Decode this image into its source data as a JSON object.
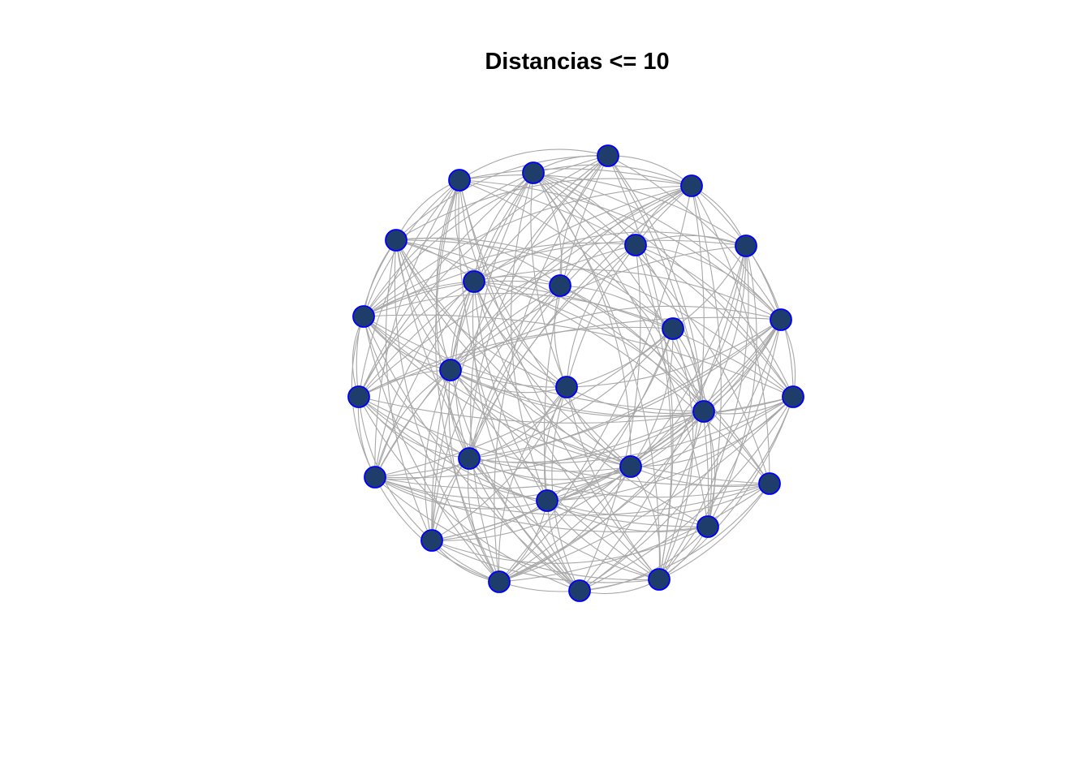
{
  "title": "Distancias <= 10",
  "colors": {
    "edge": "#a8a8a8",
    "node_fill": "#1f3d6b",
    "node_stroke": "#0000ff",
    "background": "#ffffff"
  },
  "graph": {
    "node_count": 27,
    "edge_style": "curved"
  }
}
